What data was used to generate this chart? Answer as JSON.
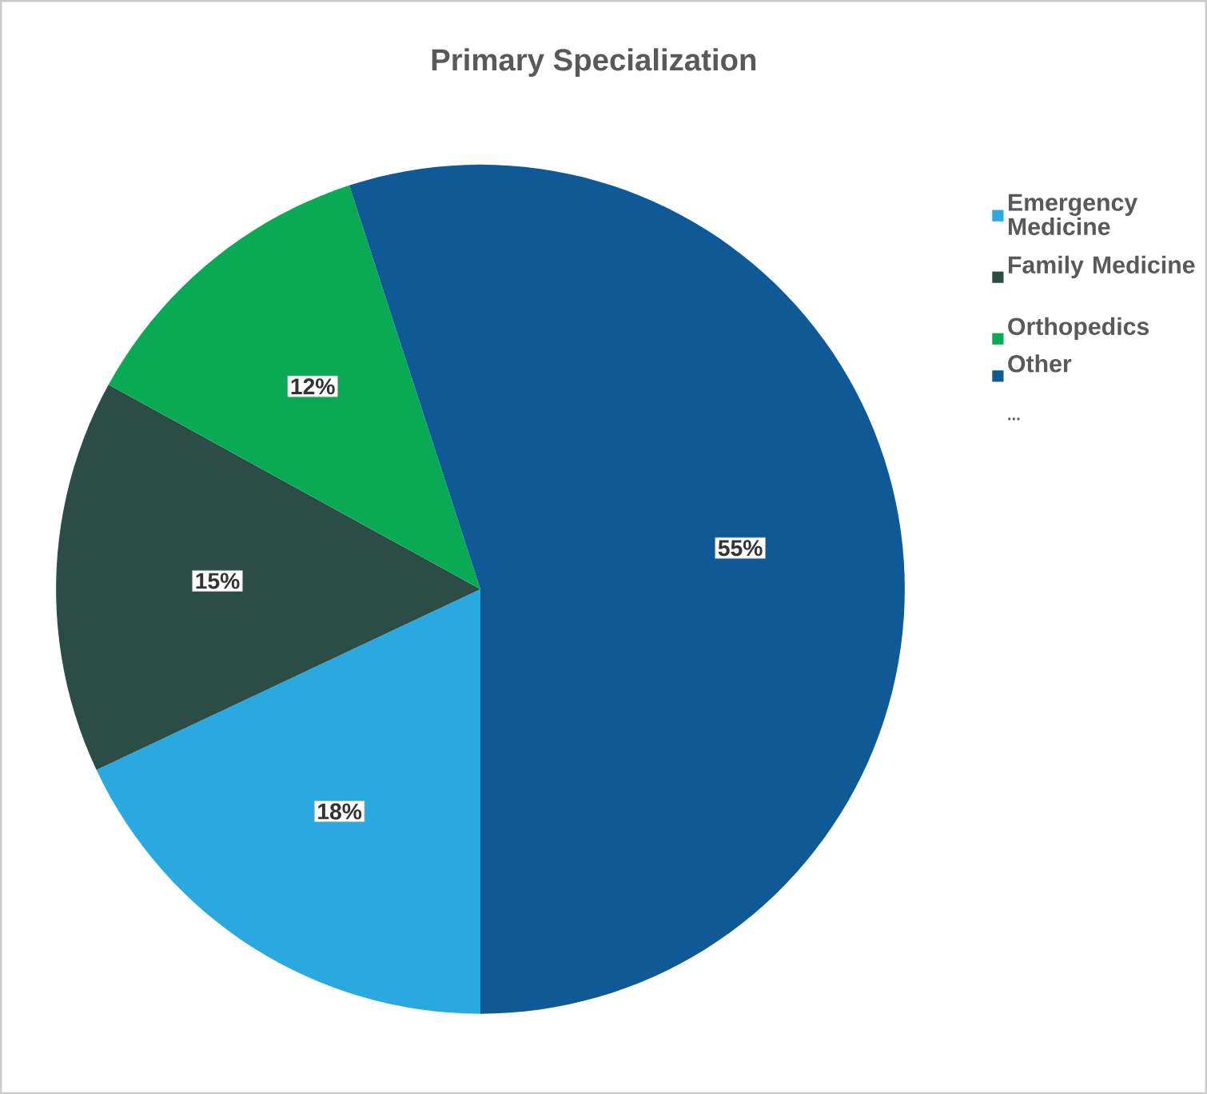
{
  "chart_data": {
    "type": "pie",
    "title": "Primary Specialization",
    "categories": [
      "Emergency Medicine",
      "Family Medicine",
      "Orthopedics",
      "Other"
    ],
    "values": [
      18,
      15,
      12,
      55
    ],
    "value_labels": [
      "18%",
      "15%",
      "12%",
      "55%"
    ],
    "colors": [
      "#29a9e0",
      "#2b4d45",
      "#0aaa55",
      "#0f5a96"
    ],
    "legend": "right",
    "annotations": [
      "..."
    ]
  }
}
